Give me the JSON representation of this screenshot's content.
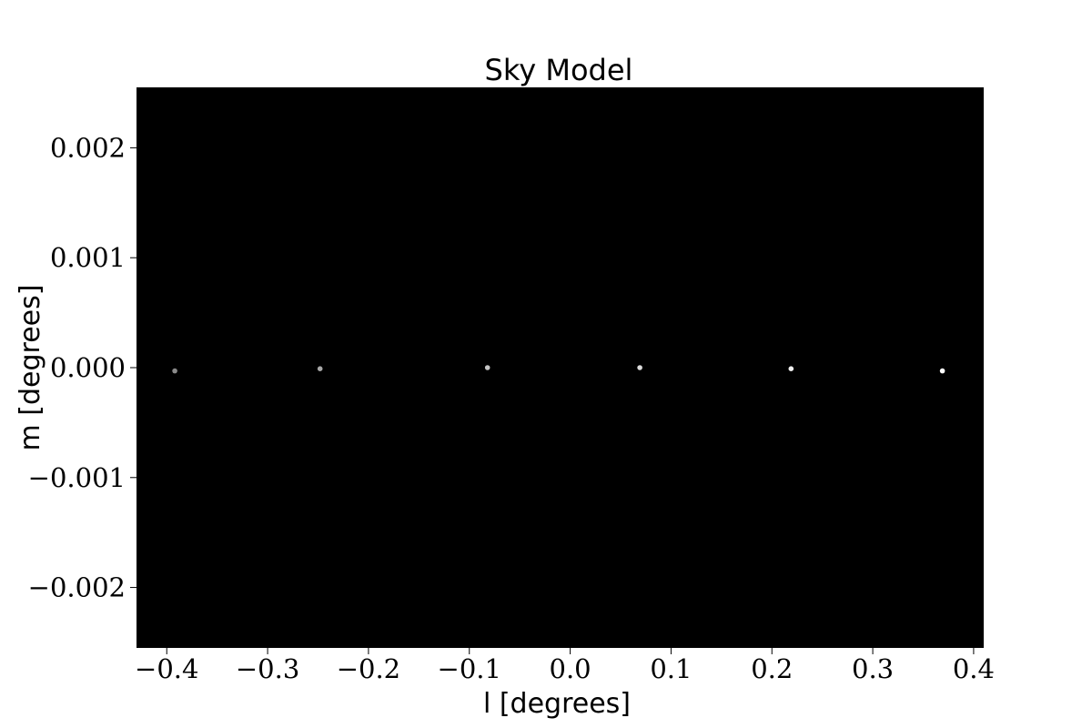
{
  "chart_data": {
    "type": "scatter",
    "title": "Sky Model",
    "xlabel": "l [degrees]",
    "ylabel": "m [degrees]",
    "xlim": [
      -0.43,
      0.41
    ],
    "ylim": [
      -0.00255,
      0.00255
    ],
    "xticks": [
      -0.4,
      -0.3,
      -0.2,
      -0.1,
      0.0,
      0.1,
      0.2,
      0.3,
      0.4
    ],
    "xtick_labels": [
      "−0.4",
      "−0.3",
      "−0.2",
      "−0.1",
      "0.0",
      "0.1",
      "0.2",
      "0.3",
      "0.4"
    ],
    "yticks": [
      0.002,
      0.001,
      0.0,
      -0.001,
      -0.002
    ],
    "ytick_labels": [
      "0.002",
      "0.001",
      "0.000",
      "−0.001",
      "−0.002"
    ],
    "background_color": "#000000",
    "grid": false,
    "points": [
      {
        "x": -0.392,
        "y": -3e-05,
        "color": "#8a8a8a"
      },
      {
        "x": -0.248,
        "y": -1e-05,
        "color": "#a8a8a8"
      },
      {
        "x": -0.082,
        "y": 0.0,
        "color": "#c4c4c4"
      },
      {
        "x": 0.069,
        "y": 0.0,
        "color": "#dcdcdc"
      },
      {
        "x": 0.219,
        "y": -1e-05,
        "color": "#efefef"
      },
      {
        "x": 0.369,
        "y": -3e-05,
        "color": "#ffffff"
      }
    ]
  }
}
